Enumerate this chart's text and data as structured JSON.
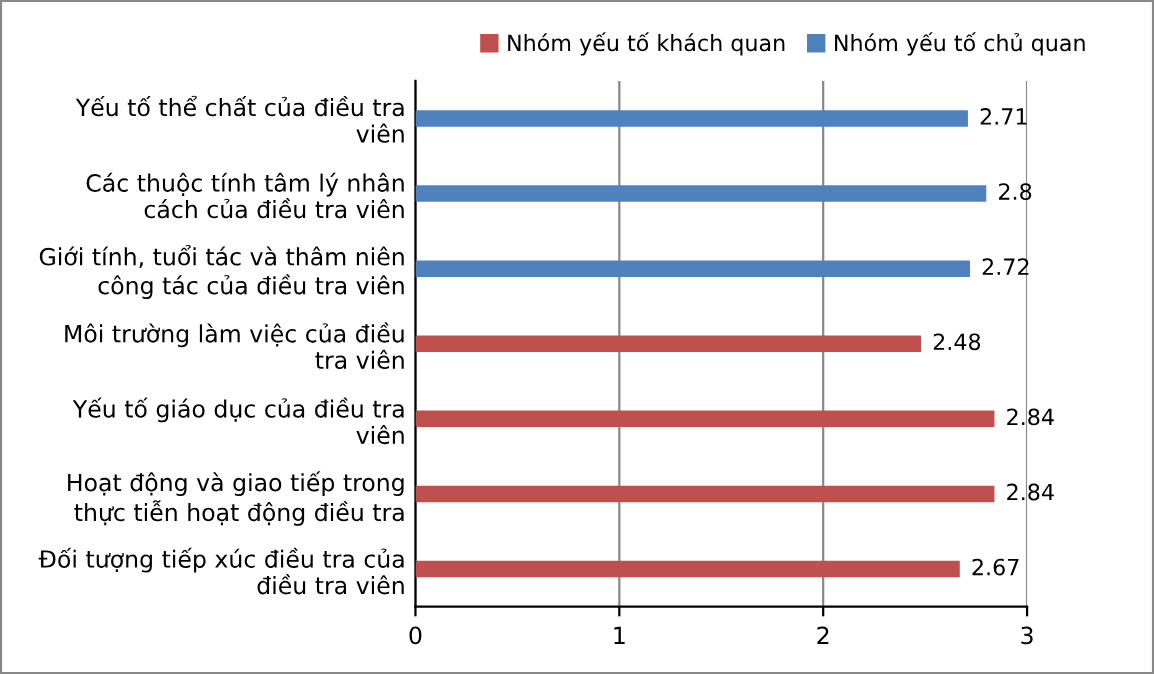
{
  "chart_data": {
    "type": "bar",
    "orientation": "horizontal",
    "categories": [
      "Yếu tố thể chất của điều tra\nviên",
      "Các thuộc tính tâm lý nhân\ncách của điều tra viên",
      "Giới tính, tuổi tác và thâm niên\ncông tác của điều tra viên",
      "Môi trường làm việc của điều\ntra viên",
      "Yếu tố giáo dục của điều tra\nviên",
      "Hoạt động và giao tiếp trong\nthực tiễn hoạt động điều tra",
      "Đối tượng tiếp xúc điều tra của\nđiều tra viên"
    ],
    "series": [
      {
        "name": "Nhóm yếu tố khách quan",
        "color": "#c0504d",
        "values": [
          null,
          null,
          null,
          2.48,
          2.84,
          2.84,
          2.67
        ]
      },
      {
        "name": "Nhóm yếu tố chủ quan",
        "color": "#4f81bd",
        "values": [
          2.71,
          2.8,
          2.72,
          null,
          null,
          null,
          null
        ]
      }
    ],
    "xlim": [
      0,
      3
    ],
    "xticks": [
      0,
      1,
      2,
      3
    ],
    "grid": "x",
    "legend": "top right",
    "data_labels": true
  }
}
